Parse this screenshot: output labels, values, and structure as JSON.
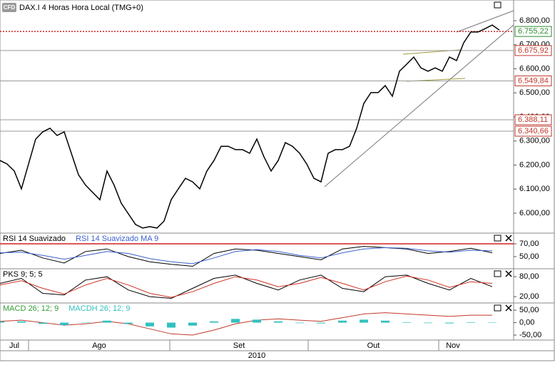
{
  "chart_data": [
    {
      "type": "line",
      "title": "DAX.I 4 Horas Hora Local (TMG+0)",
      "badge": "CFD",
      "color": "#000000",
      "x": [
        0,
        1,
        2,
        3,
        4,
        5,
        6,
        7,
        8,
        9,
        10,
        11,
        12,
        13,
        14,
        15,
        16,
        17,
        18,
        19,
        20,
        21,
        22,
        23,
        24,
        25,
        26,
        27,
        28,
        29,
        30,
        31,
        32,
        33,
        34,
        35,
        36,
        37,
        38,
        39,
        40,
        41,
        42,
        43,
        44,
        45,
        46,
        47,
        48,
        49,
        50,
        51,
        52,
        53,
        54,
        55,
        56,
        57,
        58,
        59,
        60,
        61,
        62,
        63,
        64,
        65,
        66,
        67,
        68,
        69,
        70
      ],
      "values": [
        6219,
        6204,
        6175,
        6101,
        6204,
        6308,
        6338,
        6353,
        6323,
        6338,
        6249,
        6160,
        6116,
        6086,
        6056,
        6175,
        6116,
        6041,
        5997,
        5953,
        5938,
        5944,
        5938,
        5967,
        6056,
        6101,
        6145,
        6130,
        6101,
        6175,
        6219,
        6278,
        6278,
        6264,
        6264,
        6249,
        6308,
        6234,
        6175,
        6219,
        6293,
        6278,
        6249,
        6204,
        6145,
        6130,
        6249,
        6264,
        6264,
        6278,
        6353,
        6456,
        6501,
        6501,
        6530,
        6486,
        6590,
        6619,
        6649,
        6604,
        6590,
        6604,
        6590,
        6649,
        6634,
        6708,
        6753,
        6753,
        6767,
        6782,
        6761
      ],
      "xlim": [
        0,
        72
      ],
      "xticks": [
        {
          "value": 0,
          "label": "Jul"
        },
        {
          "value": 4,
          "label": "Ago"
        },
        {
          "value": 23.8,
          "label": "Set"
        },
        {
          "value": 43.2,
          "label": "Out"
        },
        {
          "value": 61.5,
          "label": "Nov"
        }
      ],
      "xlabel": "2010",
      "ylim": [
        5917,
        6886
      ],
      "yticks": [
        {
          "value": 6000,
          "label": "6.000,00"
        },
        {
          "value": 6100,
          "label": "6.100,00"
        },
        {
          "value": 6200,
          "label": "6.200,00"
        },
        {
          "value": 6300,
          "label": "6.300,00"
        },
        {
          "value": 6400,
          "label": "6.400,00"
        },
        {
          "value": 6500,
          "label": "6.500,00"
        },
        {
          "value": 6600,
          "label": "6.600,00"
        },
        {
          "value": 6700,
          "label": "6.700,00"
        },
        {
          "value": 6800,
          "label": "6.800,00"
        }
      ],
      "levels": [
        {
          "value": 6755.22,
          "label": "6.755,22",
          "color": "#2e8b2e",
          "style": "dotted"
        },
        {
          "value": 6675.92,
          "label": "6.675,92",
          "color": "#c0392b",
          "style": "solid"
        },
        {
          "value": 6549.84,
          "label": "6.549,84",
          "color": "#c0392b",
          "style": "solid"
        },
        {
          "value": 6388.11,
          "label": "6.388,11",
          "color": "#c0392b",
          "style": "solid"
        },
        {
          "value": 6340.66,
          "label": "6.340,66",
          "color": "#c0392b",
          "style": "solid"
        }
      ]
    },
    {
      "type": "line",
      "x": [
        0,
        3,
        6,
        9,
        12,
        15,
        18,
        21,
        24,
        27,
        30,
        33,
        36,
        39,
        42,
        45,
        48,
        51,
        54,
        57,
        60,
        63,
        66,
        69
      ],
      "ylim": [
        31.1,
        86.7
      ],
      "yticks": [
        {
          "value": 70,
          "label": "70,00"
        },
        {
          "value": 50,
          "label": "50,00"
        }
      ],
      "refline": 70,
      "series": [
        {
          "name": "RSI 14 Suavizado",
          "color": "#000000",
          "values": [
            55,
            60,
            48,
            40,
            58,
            62,
            50,
            42,
            38,
            35,
            55,
            62,
            60,
            55,
            50,
            45,
            62,
            66,
            64,
            62,
            55,
            58,
            63,
            56
          ]
        },
        {
          "name": "RSI 14 Suavizado MA 9",
          "color": "#3a5fcd",
          "values": [
            56,
            57,
            52,
            46,
            52,
            58,
            55,
            47,
            42,
            39,
            48,
            58,
            61,
            58,
            52,
            48,
            56,
            62,
            64,
            63,
            59,
            57,
            60,
            59
          ]
        }
      ]
    },
    {
      "type": "line",
      "x": [
        0,
        3,
        6,
        9,
        12,
        15,
        18,
        21,
        24,
        27,
        30,
        33,
        36,
        39,
        42,
        45,
        48,
        51,
        54,
        57,
        60,
        63,
        66,
        69
      ],
      "ylim": [
        1,
        104
      ],
      "yticks": [
        {
          "value": 80,
          "label": "80,00"
        },
        {
          "value": 20,
          "label": "20,00"
        }
      ],
      "series": [
        {
          "name": "PKS 9; 5; 5",
          "color": "#000000",
          "values": [
            60,
            75,
            30,
            25,
            70,
            80,
            40,
            20,
            15,
            45,
            75,
            85,
            60,
            40,
            70,
            85,
            45,
            35,
            80,
            85,
            60,
            40,
            75,
            50
          ]
        },
        {
          "color": "#d03020",
          "values": [
            55,
            68,
            45,
            28,
            55,
            75,
            55,
            30,
            18,
            35,
            60,
            80,
            70,
            50,
            60,
            78,
            60,
            40,
            65,
            82,
            70,
            48,
            65,
            60
          ]
        }
      ]
    },
    {
      "type": "macd",
      "x": [
        0,
        3,
        6,
        9,
        12,
        15,
        18,
        21,
        24,
        27,
        30,
        33,
        36,
        39,
        42,
        45,
        48,
        51,
        54,
        57,
        60,
        63,
        66,
        69
      ],
      "ylim": [
        -70,
        79
      ],
      "yticks": [
        {
          "value": 50,
          "label": "50,00"
        },
        {
          "value": 0,
          "label": "0,00"
        },
        {
          "value": -50,
          "label": "-50,00"
        }
      ],
      "series": [
        {
          "name": "MACD 26; 12; 9",
          "color": "#c0392b",
          "label_color": "#2e9e2e",
          "values": [
            5,
            10,
            0,
            -10,
            -5,
            5,
            -5,
            -25,
            -45,
            -50,
            -30,
            -5,
            10,
            15,
            10,
            5,
            20,
            35,
            40,
            35,
            30,
            25,
            30,
            30
          ]
        },
        {
          "name": "MACDH 26; 12; 9",
          "color": "#33c0c0",
          "values": [
            5,
            5,
            -5,
            -10,
            0,
            8,
            -5,
            -15,
            -20,
            -12,
            5,
            15,
            12,
            5,
            -2,
            -3,
            8,
            12,
            8,
            2,
            -2,
            -3,
            2,
            1
          ]
        }
      ]
    }
  ]
}
